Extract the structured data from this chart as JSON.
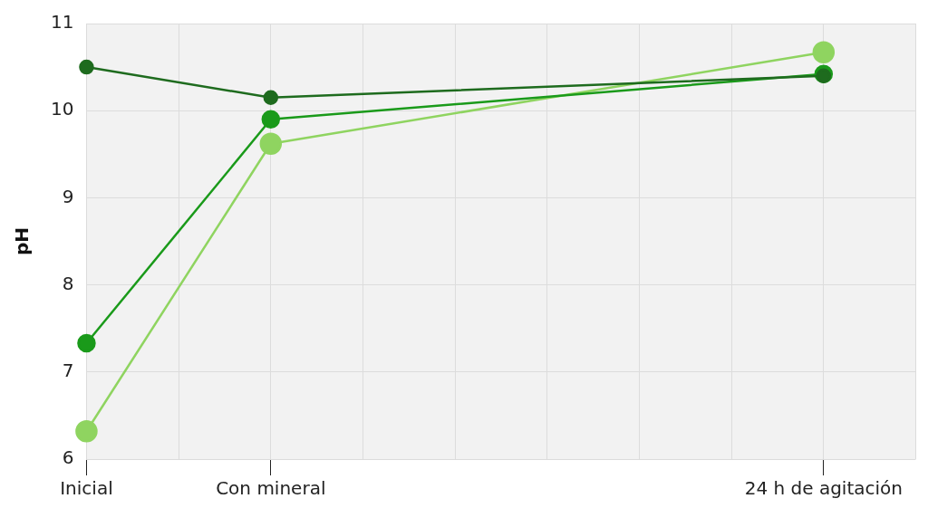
{
  "chart_data": {
    "type": "line",
    "ylabel": "pH",
    "categories": [
      "Inicial",
      null,
      "Con mineral",
      null,
      null,
      null,
      null,
      null,
      "24 h de agitación",
      null
    ],
    "ylim": [
      6,
      11
    ],
    "yticks": [
      6,
      7,
      8,
      9,
      10,
      11
    ],
    "grid": true,
    "legend": false,
    "marker": "circle",
    "line_style": "solid",
    "series": [
      {
        "color": "#1e6b1e",
        "values": [
          10.5,
          null,
          10.15,
          null,
          null,
          null,
          null,
          null,
          10.4,
          null
        ]
      },
      {
        "color": "#1a9a1a",
        "values": [
          7.33,
          null,
          9.9,
          null,
          null,
          null,
          null,
          null,
          10.42,
          null
        ]
      },
      {
        "color": "#8fd460",
        "values": [
          6.32,
          null,
          9.62,
          null,
          null,
          null,
          null,
          null,
          10.67,
          null
        ]
      }
    ]
  }
}
